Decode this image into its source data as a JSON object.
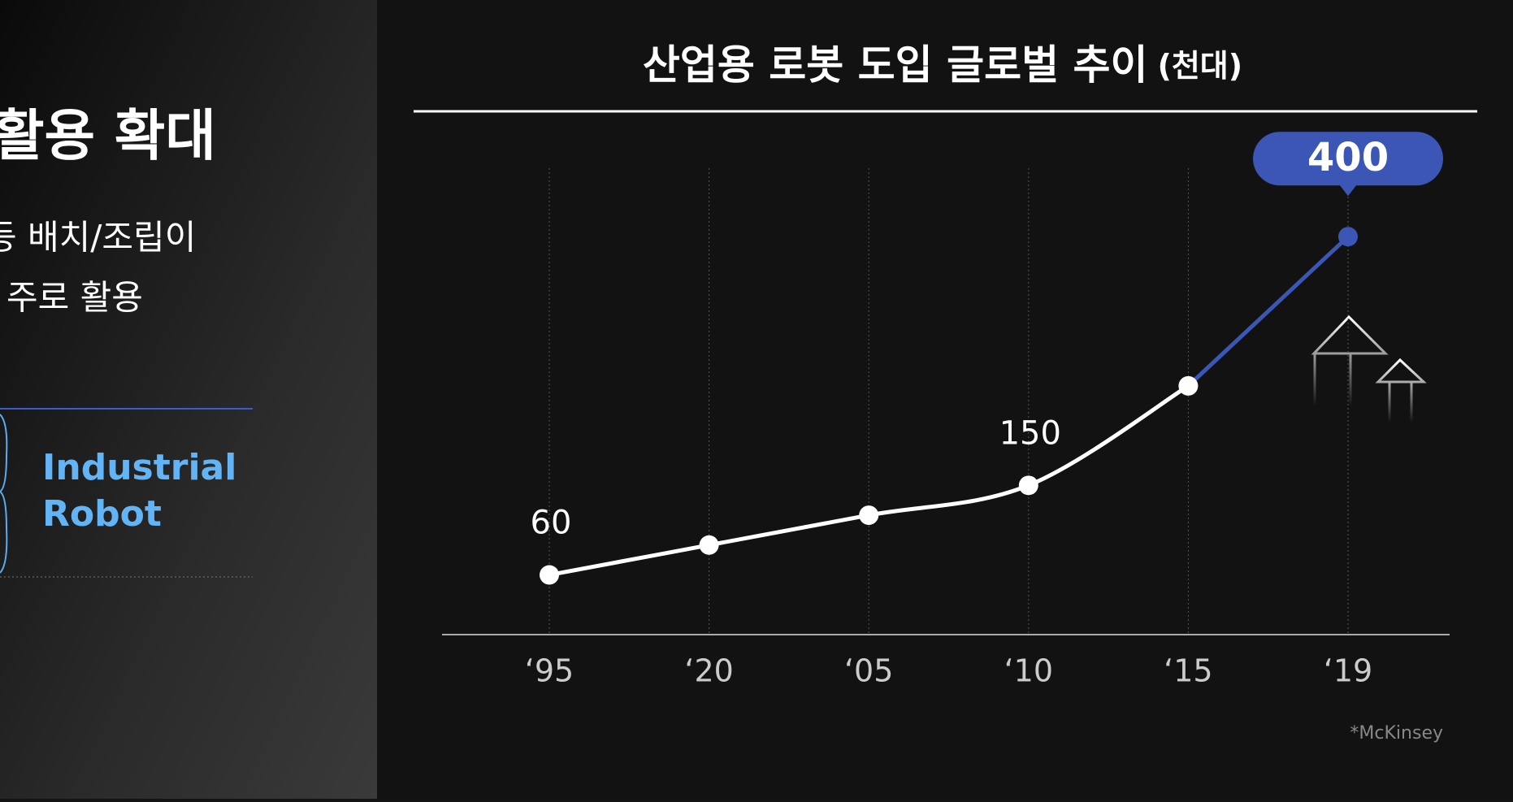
{
  "left_panel": {
    "heading": "활용 확대",
    "lines": [
      "등 배치/조립이",
      "주로 활용"
    ],
    "label": [
      "Industrial",
      "Robot"
    ]
  },
  "chart_data": {
    "type": "line",
    "title": "산업용 로봇 도입 글로벌 추이",
    "unit": "(천대)",
    "categories": [
      "‘95",
      "‘20",
      "‘05",
      "‘10",
      "‘15",
      "‘19"
    ],
    "series": [
      {
        "name": "산업용 로봇 도입",
        "color": "#ffffff",
        "highlight_color": "#3b56b5",
        "values": [
          60,
          90,
          120,
          150,
          250,
          400
        ],
        "value_labels": [
          "60",
          null,
          null,
          "150",
          null,
          "400"
        ]
      }
    ],
    "ylim": [
      0,
      450
    ],
    "grid": true,
    "source": "*McKinsey"
  }
}
